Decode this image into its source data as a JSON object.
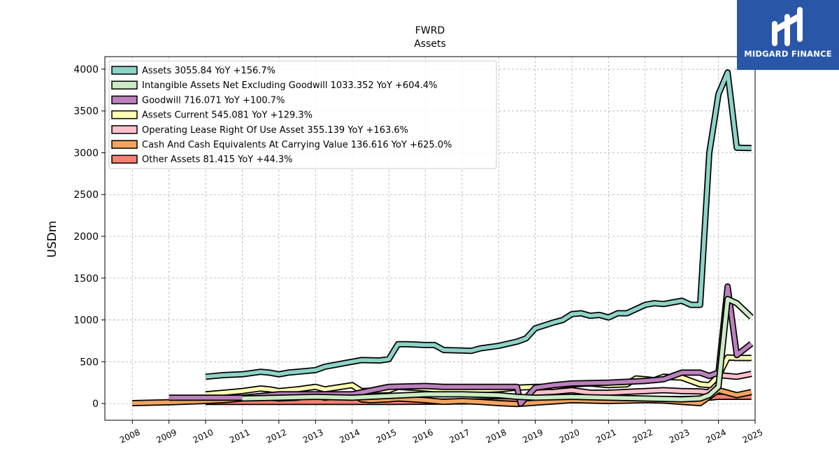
{
  "logo": {
    "text": "MIDGARD FINANCE",
    "icon": "midgard-logo-icon",
    "background": "#2a56a8"
  },
  "chart_data": {
    "type": "line",
    "title": "FWRD",
    "subtitle": "Assets",
    "xlabel": "",
    "ylabel": "USDm",
    "xlim": [
      2007.25,
      2025.0
    ],
    "ylim": [
      -200,
      4150
    ],
    "x_ticks": [
      2008,
      2009,
      2010,
      2011,
      2012,
      2013,
      2014,
      2015,
      2016,
      2017,
      2018,
      2019,
      2020,
      2021,
      2022,
      2023,
      2024,
      2025
    ],
    "x_tick_labels": [
      "2008",
      "2009",
      "2010",
      "2011",
      "2012",
      "2013",
      "2014",
      "2015",
      "2016",
      "2017",
      "2018",
      "2019",
      "2020",
      "2021",
      "2022",
      "2023",
      "2024",
      "2025"
    ],
    "y_ticks": [
      0,
      500,
      1000,
      1500,
      2000,
      2500,
      3000,
      3500,
      4000
    ],
    "y_tick_labels": [
      "0",
      "500",
      "1000",
      "1500",
      "2000",
      "2500",
      "3000",
      "3500",
      "4000"
    ],
    "grid": true,
    "legend_position": "top-left",
    "series": [
      {
        "name": "Other Assets",
        "legend_label": "Other Assets  81.415 YoY +44.3%",
        "color": "#fa8072",
        "points": [
          [
            2010.0,
            20
          ],
          [
            2011.0,
            20
          ],
          [
            2012.0,
            20
          ],
          [
            2013.0,
            20
          ],
          [
            2014.0,
            20
          ],
          [
            2015.0,
            20
          ],
          [
            2016.0,
            22
          ],
          [
            2017.0,
            25
          ],
          [
            2018.0,
            28
          ],
          [
            2019.0,
            35
          ],
          [
            2020.0,
            40
          ],
          [
            2021.0,
            45
          ],
          [
            2022.0,
            50
          ],
          [
            2023.0,
            55
          ],
          [
            2023.5,
            58
          ],
          [
            2024.0,
            81
          ],
          [
            2024.5,
            80
          ],
          [
            2024.9,
            81
          ]
        ]
      },
      {
        "name": "Cash And Cash Equivalents At Carrying Value",
        "legend_label": "Cash And Cash Equivalents At Carrying Value  136.616 YoY +625.0%",
        "color": "#f4a460",
        "points": [
          [
            2008.0,
            5
          ],
          [
            2009.0,
            15
          ],
          [
            2010.0,
            30
          ],
          [
            2010.5,
            40
          ],
          [
            2011.0,
            60
          ],
          [
            2011.5,
            80
          ],
          [
            2012.0,
            60
          ],
          [
            2012.5,
            70
          ],
          [
            2013.0,
            100
          ],
          [
            2013.25,
            70
          ],
          [
            2013.75,
            90
          ],
          [
            2014.0,
            110
          ],
          [
            2014.25,
            50
          ],
          [
            2014.5,
            40
          ],
          [
            2015.0,
            50
          ],
          [
            2015.25,
            60
          ],
          [
            2016.0,
            40
          ],
          [
            2016.5,
            20
          ],
          [
            2017.0,
            30
          ],
          [
            2017.5,
            20
          ],
          [
            2018.0,
            5
          ],
          [
            2018.5,
            -5
          ],
          [
            2019.0,
            10
          ],
          [
            2019.5,
            25
          ],
          [
            2020.0,
            40
          ],
          [
            2021.0,
            30
          ],
          [
            2022.0,
            40
          ],
          [
            2022.5,
            35
          ],
          [
            2023.0,
            20
          ],
          [
            2023.5,
            5
          ],
          [
            2024.0,
            160
          ],
          [
            2024.5,
            100
          ],
          [
            2024.9,
            137
          ]
        ]
      },
      {
        "name": "Operating Lease Right Of Use Asset",
        "legend_label": "Operating Lease Right Of Use Asset  355.139 YoY +163.6%",
        "color": "#ffc0cb",
        "points": [
          [
            2019.0,
            130
          ],
          [
            2019.5,
            140
          ],
          [
            2020.0,
            160
          ],
          [
            2020.5,
            130
          ],
          [
            2021.0,
            130
          ],
          [
            2021.5,
            140
          ],
          [
            2022.0,
            150
          ],
          [
            2022.5,
            160
          ],
          [
            2023.0,
            150
          ],
          [
            2023.5,
            145
          ],
          [
            2023.75,
            135
          ],
          [
            2024.0,
            340
          ],
          [
            2024.25,
            330
          ],
          [
            2024.5,
            320
          ],
          [
            2024.9,
            355
          ]
        ]
      },
      {
        "name": "Assets Current",
        "legend_label": "Assets Current  545.081 YoY +129.3%",
        "color": "#ffffb3",
        "points": [
          [
            2010.0,
            110
          ],
          [
            2010.5,
            130
          ],
          [
            2011.0,
            150
          ],
          [
            2011.5,
            180
          ],
          [
            2011.75,
            170
          ],
          [
            2012.0,
            150
          ],
          [
            2012.5,
            170
          ],
          [
            2013.0,
            200
          ],
          [
            2013.25,
            170
          ],
          [
            2014.0,
            220
          ],
          [
            2014.25,
            150
          ],
          [
            2015.0,
            160
          ],
          [
            2015.25,
            200
          ],
          [
            2016.0,
            180
          ],
          [
            2016.5,
            160
          ],
          [
            2017.0,
            150
          ],
          [
            2018.0,
            170
          ],
          [
            2018.5,
            190
          ],
          [
            2019.0,
            200
          ],
          [
            2019.5,
            200
          ],
          [
            2020.0,
            230
          ],
          [
            2020.5,
            240
          ],
          [
            2021.0,
            220
          ],
          [
            2021.5,
            230
          ],
          [
            2021.75,
            300
          ],
          [
            2022.0,
            290
          ],
          [
            2022.25,
            280
          ],
          [
            2022.5,
            320
          ],
          [
            2023.0,
            310
          ],
          [
            2023.5,
            230
          ],
          [
            2023.75,
            220
          ],
          [
            2024.0,
            330
          ],
          [
            2024.25,
            550
          ],
          [
            2024.5,
            545
          ],
          [
            2024.9,
            545
          ]
        ]
      },
      {
        "name": "Goodwill",
        "legend_label": "Goodwill  716.071 YoY +100.7%",
        "color": "#bc80bd",
        "points": [
          [
            2009.0,
            70
          ],
          [
            2010.0,
            70
          ],
          [
            2011.0,
            70
          ],
          [
            2012.0,
            110
          ],
          [
            2013.0,
            110
          ],
          [
            2014.0,
            110
          ],
          [
            2015.0,
            200
          ],
          [
            2016.0,
            210
          ],
          [
            2016.5,
            200
          ],
          [
            2017.0,
            200
          ],
          [
            2018.0,
            200
          ],
          [
            2018.5,
            200
          ],
          [
            2018.6,
            0
          ],
          [
            2019.0,
            190
          ],
          [
            2019.5,
            220
          ],
          [
            2020.0,
            240
          ],
          [
            2021.0,
            250
          ],
          [
            2021.5,
            260
          ],
          [
            2022.0,
            270
          ],
          [
            2022.5,
            290
          ],
          [
            2023.0,
            370
          ],
          [
            2023.5,
            370
          ],
          [
            2023.75,
            330
          ],
          [
            2024.0,
            370
          ],
          [
            2024.25,
            1400
          ],
          [
            2024.5,
            580
          ],
          [
            2024.9,
            716
          ]
        ]
      },
      {
        "name": "Intangible Assets Net Excluding Goodwill",
        "legend_label": "Intangible Assets Net Excluding Goodwill  1033.352 YoY +604.4%",
        "color": "#ccebc5",
        "points": [
          [
            2011.0,
            60
          ],
          [
            2012.0,
            70
          ],
          [
            2013.0,
            80
          ],
          [
            2014.0,
            70
          ],
          [
            2015.0,
            90
          ],
          [
            2016.0,
            110
          ],
          [
            2017.0,
            110
          ],
          [
            2018.0,
            100
          ],
          [
            2018.5,
            80
          ],
          [
            2019.0,
            70
          ],
          [
            2020.0,
            80
          ],
          [
            2021.0,
            70
          ],
          [
            2022.0,
            60
          ],
          [
            2023.0,
            50
          ],
          [
            2023.5,
            60
          ],
          [
            2023.75,
            100
          ],
          [
            2024.0,
            200
          ],
          [
            2024.25,
            1250
          ],
          [
            2024.5,
            1200
          ],
          [
            2024.9,
            1033
          ]
        ]
      },
      {
        "name": "Assets",
        "legend_label": "Assets  3055.84 YoY +156.7%",
        "color": "#8dd3c7",
        "points": [
          [
            2010.0,
            320
          ],
          [
            2010.5,
            340
          ],
          [
            2011.0,
            350
          ],
          [
            2011.5,
            380
          ],
          [
            2011.75,
            370
          ],
          [
            2012.0,
            350
          ],
          [
            2012.25,
            370
          ],
          [
            2012.5,
            380
          ],
          [
            2013.0,
            400
          ],
          [
            2013.25,
            440
          ],
          [
            2013.75,
            480
          ],
          [
            2014.0,
            500
          ],
          [
            2014.25,
            520
          ],
          [
            2014.75,
            515
          ],
          [
            2015.0,
            530
          ],
          [
            2015.25,
            710
          ],
          [
            2015.5,
            710
          ],
          [
            2016.0,
            700
          ],
          [
            2016.25,
            700
          ],
          [
            2016.5,
            640
          ],
          [
            2017.0,
            635
          ],
          [
            2017.25,
            630
          ],
          [
            2017.5,
            660
          ],
          [
            2018.0,
            690
          ],
          [
            2018.5,
            740
          ],
          [
            2018.75,
            780
          ],
          [
            2019.0,
            900
          ],
          [
            2019.5,
            970
          ],
          [
            2019.75,
            1000
          ],
          [
            2020.0,
            1070
          ],
          [
            2020.25,
            1080
          ],
          [
            2020.5,
            1050
          ],
          [
            2020.75,
            1060
          ],
          [
            2021.0,
            1030
          ],
          [
            2021.25,
            1080
          ],
          [
            2021.5,
            1080
          ],
          [
            2022.0,
            1180
          ],
          [
            2022.25,
            1200
          ],
          [
            2022.5,
            1190
          ],
          [
            2022.75,
            1210
          ],
          [
            2023.0,
            1230
          ],
          [
            2023.25,
            1180
          ],
          [
            2023.5,
            1180
          ],
          [
            2023.75,
            3000
          ],
          [
            2024.0,
            3700
          ],
          [
            2024.25,
            3960
          ],
          [
            2024.5,
            3060
          ],
          [
            2024.9,
            3056
          ]
        ]
      }
    ]
  }
}
